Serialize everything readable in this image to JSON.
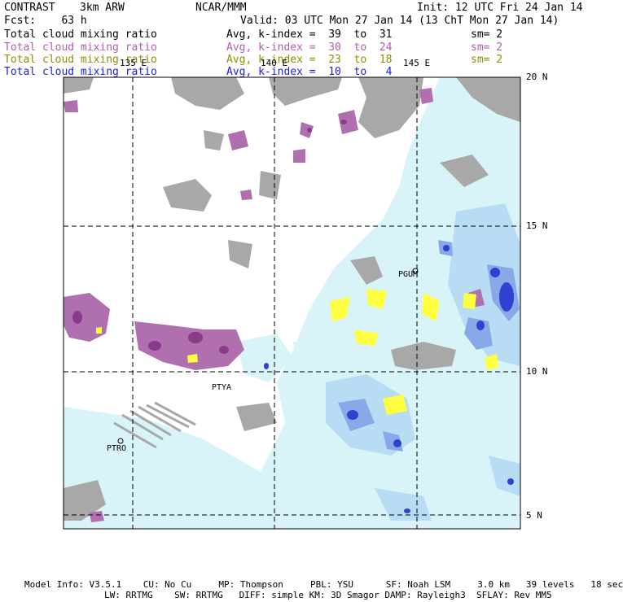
{
  "header": {
    "product": "CONTRAST",
    "model": "3km ARW",
    "org": "NCAR/MMM",
    "init": "Init: 12 UTC Fri 24 Jan 14",
    "forecast": "Fcst:    63 h",
    "valid": "Valid: 03 UTC Mon 27 Jan 14 (13 ChT Mon 27 Jan 14)"
  },
  "legend": [
    {
      "field": "Total cloud mixing ratio",
      "stat": "Avg, k-index =  39  to  31",
      "smooth": "sm= 2",
      "color": "#000000"
    },
    {
      "field": "Total cloud mixing ratio",
      "stat": "Avg, k-index =  30  to  24",
      "smooth": "sm= 2",
      "color": "#b060b0"
    },
    {
      "field": "Total cloud mixing ratio",
      "stat": "Avg, k-index =  23  to  18",
      "smooth": "sm= 2",
      "color": "#909000"
    },
    {
      "field": "Total cloud mixing ratio",
      "stat": "Avg, k-index =  10  to   4",
      "smooth": "",
      "color": "#2020e0"
    }
  ],
  "axes": {
    "lon_labels": [
      "135 E",
      "140 E",
      "145 E"
    ],
    "lat_labels": [
      "20 N",
      "15 N",
      "10 N",
      "5 N"
    ]
  },
  "stations": [
    "PGUM",
    "PTYA",
    "PTRO"
  ],
  "footer": {
    "line1": "Model Info: V3.5.1    CU: No Cu     MP: Thompson     PBL: YSU      SF: Noah LSM     3.0 km   39 levels   18 sec",
    "line2": "LW: RRTMG    SW: RRTMG   DIFF: simple KM: 3D Smagor DAMP: Rayleigh3  SFLAY: Rev MM5"
  },
  "colors": {
    "gray_cloud": "#a8a8a8",
    "purple_cloud": "#b070b0",
    "dark_purple": "#8a3a8a",
    "yellow_cloud": "#ffff40",
    "light_blue": "#d8f4f8",
    "blue1": "#b8dcf4",
    "blue2": "#88a8e8",
    "blue3": "#4050d8",
    "blue4": "#1010b0"
  }
}
